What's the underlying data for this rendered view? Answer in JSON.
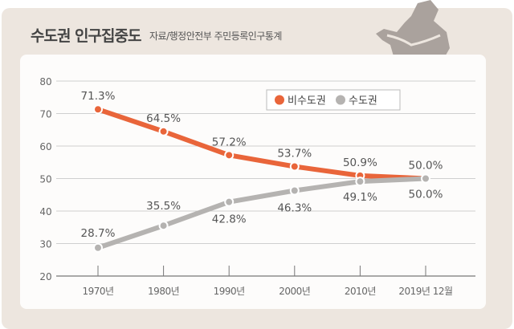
{
  "title": "수도권 인구집중도",
  "source": "자료/행정안전부 주민등록인구통계",
  "chart_data": {
    "type": "line",
    "title": "수도권 인구집중도",
    "categories": [
      "1970년",
      "1980년",
      "1990년",
      "2000년",
      "2010년",
      "2019년 12월"
    ],
    "ylim": [
      20,
      80
    ],
    "yticks": [
      20,
      30,
      40,
      50,
      60,
      70,
      80
    ],
    "grid": true,
    "legend_position": "top-right",
    "series": [
      {
        "name": "비수도권",
        "color": "#e9653a",
        "values": [
          71.3,
          64.5,
          57.2,
          53.7,
          50.9,
          50.0
        ],
        "labels": [
          "71.3%",
          "64.5%",
          "57.2%",
          "53.7%",
          "50.9%",
          "50.0%"
        ]
      },
      {
        "name": "수도권",
        "color": "#b5b3b1",
        "values": [
          28.7,
          35.5,
          42.8,
          46.3,
          49.1,
          50.0
        ],
        "labels": [
          "28.7%",
          "35.5%",
          "42.8%",
          "46.3%",
          "49.1%",
          "50.0%"
        ]
      }
    ]
  }
}
